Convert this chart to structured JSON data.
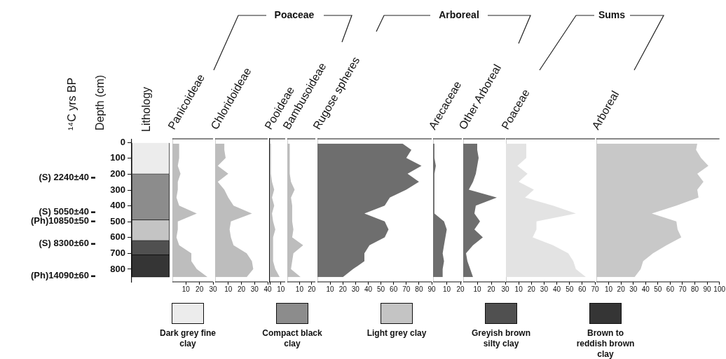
{
  "chart_data": [
    {
      "type": "bar",
      "title": "Lithology",
      "ylabel": "Depth (cm)",
      "stacked": true,
      "categories": [
        null
      ],
      "legend": "bottom",
      "series": [
        {
          "name": "Dark grey fine clay",
          "color": "#ececec",
          "values": [
            200
          ]
        },
        {
          "name": "Compact black clay",
          "color": "#8c8c8c",
          "values": [
            290
          ]
        },
        {
          "name": "Light grey clay",
          "color": "#c4c4c4",
          "values": [
            130
          ]
        },
        {
          "name": "Greyish brown silty clay",
          "color": "#505050",
          "values": [
            90
          ]
        },
        {
          "name": "Brown to reddish brown clay",
          "color": "#353535",
          "values": [
            140
          ]
        }
      ],
      "ylim": [
        880,
        -20
      ],
      "yticks": [
        0,
        100,
        200,
        300,
        400,
        500,
        600,
        700,
        800
      ],
      "annotations": [
        "¹⁴C yrs BP"
      ],
      "ref_lines": [
        {
          "axis": "y",
          "value": 222,
          "label": "(S) 2240±40"
        },
        {
          "axis": "y",
          "value": 440,
          "label": "(S) 5050±40"
        },
        {
          "axis": "y",
          "value": 498,
          "label": "(Ph)10850±50"
        },
        {
          "axis": "y",
          "value": 640,
          "label": "(S) 8300±60"
        },
        {
          "axis": "y",
          "value": 844,
          "label": "(Ph)14090±60"
        }
      ]
    },
    {
      "type": "area",
      "orientation": "horizontal",
      "title": "Panicoideae",
      "annotations": [
        "Poaceae"
      ],
      "color": "#bdbdbd",
      "x": [
        10,
        50,
        100,
        150,
        200,
        250,
        300,
        350,
        400,
        450,
        500,
        550,
        600,
        650,
        700,
        750,
        800,
        850
      ],
      "values": [
        5,
        5,
        5,
        4,
        6,
        4,
        4,
        3,
        5,
        18,
        4,
        4,
        3,
        5,
        14,
        14,
        18,
        26
      ],
      "xlim": [
        0,
        30
      ],
      "xticks": [
        10,
        20,
        30
      ],
      "ylim": [
        880,
        -20
      ],
      "tick_labels": "x"
    },
    {
      "type": "area",
      "orientation": "horizontal",
      "title": "Chloridoideae",
      "color": "#bdbdbd",
      "x": [
        10,
        50,
        100,
        150,
        200,
        250,
        300,
        350,
        400,
        450,
        500,
        550,
        600,
        650,
        700,
        750,
        800,
        850
      ],
      "values": [
        7,
        7,
        8,
        2,
        10,
        2,
        7,
        10,
        14,
        28,
        12,
        11,
        12,
        14,
        24,
        28,
        29,
        24
      ],
      "xlim": [
        0,
        40
      ],
      "xticks": [
        10,
        20,
        30,
        40
      ],
      "ylim": [
        880,
        -20
      ],
      "tick_labels": "x"
    },
    {
      "type": "area",
      "orientation": "horizontal",
      "title": "Pooideae",
      "color": "#bdbdbd",
      "x": [
        10,
        50,
        100,
        150,
        200,
        250,
        300,
        350,
        400,
        450,
        500,
        550,
        600,
        650,
        700,
        750,
        800,
        850
      ],
      "values": [
        1,
        1,
        1,
        1,
        1,
        2,
        4,
        2,
        4,
        2,
        3,
        5,
        3,
        3,
        3,
        3,
        5,
        9
      ],
      "xlim": [
        0,
        14
      ],
      "xticks": [
        {
          "value": 0,
          "label": null
        },
        10
      ],
      "ylim": [
        880,
        -20
      ],
      "tick_labels": "x"
    },
    {
      "type": "area",
      "orientation": "horizontal",
      "title": "Bambusoideae",
      "color": "#bdbdbd",
      "x": [
        10,
        50,
        100,
        150,
        200,
        250,
        300,
        350,
        400,
        450,
        500,
        550,
        600,
        650,
        700,
        750,
        800,
        850
      ],
      "values": [
        2,
        2,
        2,
        2,
        2,
        3,
        6,
        3,
        4,
        4,
        4,
        5,
        4,
        13,
        5,
        4,
        3,
        11
      ],
      "xlim": [
        0,
        23
      ],
      "xticks": [
        10,
        20
      ],
      "ylim": [
        880,
        -20
      ],
      "tick_labels": "x"
    },
    {
      "type": "area",
      "orientation": "horizontal",
      "title": "Rugose spheres",
      "annotations": [
        "Arboreal"
      ],
      "color": "#6e6e6e",
      "x": [
        10,
        50,
        100,
        150,
        200,
        250,
        300,
        350,
        400,
        450,
        500,
        550,
        600,
        650,
        700,
        750,
        800,
        850
      ],
      "values": [
        67,
        74,
        70,
        82,
        71,
        80,
        70,
        57,
        53,
        37,
        53,
        56,
        53,
        41,
        37,
        37,
        28,
        20
      ],
      "xlim": [
        0,
        90
      ],
      "xticks": [
        10,
        20,
        30,
        40,
        50,
        60,
        70,
        80,
        90
      ],
      "ylim": [
        880,
        -20
      ],
      "tick_labels": "x"
    },
    {
      "type": "area",
      "orientation": "horizontal",
      "title": "Arecaceae",
      "color": "#6e6e6e",
      "x": [
        10,
        50,
        100,
        150,
        200,
        250,
        300,
        350,
        400,
        450,
        500,
        550,
        600,
        650,
        700,
        750,
        800,
        850
      ],
      "values": [
        1,
        1,
        1,
        2,
        1,
        1,
        1,
        1,
        1,
        1,
        8,
        10,
        9,
        8,
        7,
        8,
        7,
        7
      ],
      "xlim": [
        0,
        21
      ],
      "xticks": [
        10,
        20
      ],
      "ylim": [
        880,
        -20
      ],
      "tick_labels": "x"
    },
    {
      "type": "area",
      "orientation": "horizontal",
      "title": "Other Arboreal",
      "color": "#6e6e6e",
      "x": [
        10,
        50,
        100,
        150,
        200,
        250,
        300,
        350,
        400,
        450,
        500,
        550,
        600,
        650,
        700,
        750,
        800,
        850
      ],
      "values": [
        10,
        10,
        11,
        10,
        9,
        7,
        4,
        24,
        9,
        8,
        12,
        8,
        14,
        7,
        2,
        3,
        5,
        7
      ],
      "xlim": [
        0,
        30
      ],
      "xticks": [
        10,
        20,
        30
      ],
      "ylim": [
        880,
        -20
      ],
      "tick_labels": "x"
    },
    {
      "type": "area",
      "orientation": "horizontal",
      "title": "Poaceae",
      "annotations": [
        "Sums"
      ],
      "color": "#e3e3e3",
      "x": [
        10,
        50,
        100,
        150,
        200,
        250,
        300,
        350,
        400,
        450,
        500,
        550,
        600,
        650,
        700,
        750,
        800,
        850
      ],
      "values": [
        16,
        16,
        16,
        9,
        17,
        10,
        22,
        15,
        37,
        55,
        24,
        24,
        21,
        37,
        49,
        53,
        55,
        63
      ],
      "xlim": [
        0,
        70
      ],
      "xticks": [
        10,
        20,
        30,
        40,
        50,
        60,
        70
      ],
      "ylim": [
        880,
        -20
      ],
      "tick_labels": "x"
    },
    {
      "type": "area",
      "orientation": "horizontal",
      "title": "Arboreal",
      "color": "#c8c8c8",
      "x": [
        10,
        50,
        100,
        150,
        200,
        250,
        300,
        350,
        400,
        450,
        500,
        550,
        600,
        650,
        700,
        750,
        800,
        850
      ],
      "values": [
        82,
        81,
        85,
        91,
        82,
        87,
        82,
        83,
        65,
        45,
        65,
        66,
        69,
        57,
        46,
        38,
        36,
        31
      ],
      "xlim": [
        0,
        100
      ],
      "xticks": [
        10,
        20,
        30,
        40,
        50,
        60,
        70,
        80,
        90,
        100
      ],
      "ylim": [
        880,
        -20
      ],
      "tick_labels": "x"
    }
  ]
}
